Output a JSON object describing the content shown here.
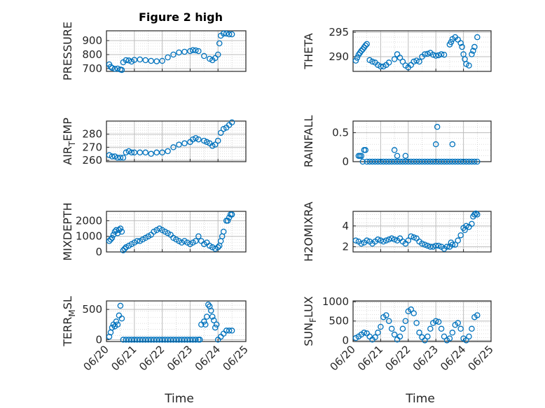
{
  "figure": {
    "title": "Figure 2 high",
    "xlabel": "Time"
  },
  "chart_data": [
    {
      "type": "scatter",
      "ylabel": "PRESSURE",
      "xlim": [
        0,
        5
      ],
      "ylim": [
        680,
        970
      ],
      "yticks": [
        700,
        800,
        900
      ],
      "ytick_labels": [
        "700",
        "800",
        "900"
      ],
      "xticks": [
        0,
        1,
        2,
        3,
        4,
        5
      ],
      "xtick_labels": [],
      "x_tick_pos": "bottom",
      "series": [
        {
          "x": [
            0.1,
            0.15,
            0.2,
            0.3,
            0.4,
            0.5,
            0.55,
            0.6,
            0.7,
            0.8,
            0.9,
            1.0,
            1.2,
            1.4,
            1.6,
            1.8,
            2.0,
            2.2,
            2.4,
            2.6,
            2.8,
            3.0,
            3.1,
            3.2,
            3.3,
            3.5,
            3.7,
            3.8,
            3.9,
            4.0,
            4.05,
            4.1,
            4.2,
            4.3,
            4.4,
            4.5
          ],
          "y": [
            730,
            712,
            705,
            698,
            700,
            693,
            690,
            745,
            760,
            758,
            750,
            762,
            765,
            760,
            755,
            752,
            755,
            780,
            800,
            815,
            820,
            825,
            832,
            830,
            825,
            790,
            770,
            760,
            775,
            800,
            880,
            935,
            950,
            950,
            945,
            945
          ]
        }
      ]
    },
    {
      "type": "scatter",
      "ylabel": "THETA",
      "xlim": [
        0,
        5
      ],
      "ylim": [
        287,
        295.3
      ],
      "yticks": [
        290,
        295
      ],
      "ytick_labels": [
        "290",
        "295"
      ],
      "xticks": [
        0,
        1,
        2,
        3,
        4,
        5
      ],
      "xtick_labels": [],
      "series": [
        {
          "x": [
            0.1,
            0.15,
            0.2,
            0.25,
            0.3,
            0.35,
            0.4,
            0.45,
            0.5,
            0.6,
            0.7,
            0.8,
            0.9,
            1.0,
            1.1,
            1.2,
            1.3,
            1.5,
            1.6,
            1.7,
            1.8,
            1.9,
            2.0,
            2.1,
            2.2,
            2.3,
            2.4,
            2.5,
            2.6,
            2.7,
            2.8,
            2.9,
            3.0,
            3.1,
            3.2,
            3.3,
            3.5,
            3.55,
            3.6,
            3.7,
            3.8,
            3.9,
            3.95,
            4.0,
            4.05,
            4.1,
            4.2,
            4.3,
            4.35,
            4.4,
            4.5
          ],
          "y": [
            289.2,
            289.8,
            290.4,
            290.8,
            291.2,
            291.5,
            291.9,
            292.3,
            292.6,
            289.3,
            289.0,
            288.8,
            288.3,
            288.0,
            288.0,
            288.3,
            288.8,
            289.5,
            290.5,
            289.8,
            289.0,
            288.2,
            287.8,
            288.3,
            289.0,
            289.2,
            289.0,
            290.0,
            290.5,
            290.6,
            290.8,
            290.4,
            290.2,
            290.3,
            290.5,
            290.4,
            292.5,
            293.0,
            293.6,
            294.0,
            293.5,
            292.8,
            292.0,
            290.5,
            289.5,
            288.5,
            288.2,
            290.5,
            291.2,
            292.0,
            294.0
          ]
        }
      ]
    },
    {
      "type": "scatter",
      "ylabel": "AIR_TEMP",
      "ylabel_base": "AIR",
      "ylabel_sub": "T",
      "ylabel_rest": "EMP",
      "xlim": [
        0,
        5
      ],
      "ylim": [
        259,
        290
      ],
      "yticks": [
        260,
        270,
        280
      ],
      "ytick_labels": [
        "260",
        "270",
        "280"
      ],
      "xticks": [
        0,
        1,
        2,
        3,
        4,
        5
      ],
      "xtick_labels": [],
      "series": [
        {
          "x": [
            0.1,
            0.2,
            0.3,
            0.4,
            0.5,
            0.6,
            0.7,
            0.8,
            0.9,
            1.0,
            1.2,
            1.4,
            1.6,
            1.8,
            2.0,
            2.2,
            2.4,
            2.6,
            2.8,
            3.0,
            3.1,
            3.2,
            3.3,
            3.5,
            3.6,
            3.7,
            3.8,
            3.9,
            4.0,
            4.1,
            4.2,
            4.3,
            4.4,
            4.5
          ],
          "y": [
            264,
            263,
            263,
            262,
            262,
            262,
            266,
            267,
            266,
            266,
            266,
            266,
            265,
            266,
            266,
            267,
            270,
            272,
            273,
            274,
            276,
            277,
            276,
            275,
            274,
            273,
            271,
            272,
            275,
            281,
            284,
            285,
            287,
            289
          ]
        }
      ]
    },
    {
      "type": "scatter",
      "ylabel": "RAINFALL",
      "xlim": [
        0,
        5
      ],
      "ylim": [
        0,
        0.7
      ],
      "yticks": [
        0,
        0.5
      ],
      "ytick_labels": [
        "0",
        "0.5"
      ],
      "xticks": [
        0,
        1,
        2,
        3,
        4,
        5
      ],
      "xtick_labels": [],
      "series": [
        {
          "x": [
            0.2,
            0.25,
            0.3,
            0.35,
            0.4,
            0.45,
            0.5,
            0.6,
            0.7,
            0.8,
            0.9,
            1.0,
            1.1,
            1.2,
            1.3,
            1.4,
            1.5,
            1.6,
            1.7,
            1.8,
            1.9,
            2.0,
            2.1,
            2.2,
            2.3,
            2.4,
            2.5,
            2.6,
            2.7,
            2.8,
            2.9,
            3.0,
            3.1,
            3.2,
            3.3,
            3.4,
            3.5,
            3.6,
            3.7,
            3.8,
            3.9,
            4.0,
            4.1,
            4.2,
            4.3,
            4.4,
            4.5,
            1.5,
            1.6,
            1.9,
            3.0,
            3.05,
            3.6
          ],
          "y": [
            0.1,
            0.1,
            0.1,
            0,
            0.2,
            0.2,
            0,
            0,
            0,
            0,
            0,
            0,
            0,
            0,
            0,
            0,
            0,
            0,
            0,
            0,
            0,
            0,
            0,
            0,
            0,
            0,
            0,
            0,
            0,
            0,
            0,
            0,
            0,
            0,
            0,
            0,
            0,
            0,
            0,
            0,
            0,
            0,
            0,
            0,
            0,
            0,
            0,
            0.2,
            0.1,
            0.1,
            0.3,
            0.6,
            0.3
          ]
        }
      ]
    },
    {
      "type": "scatter",
      "ylabel": "MIXDEPTH",
      "xlim": [
        0,
        5
      ],
      "ylim": [
        0,
        2600
      ],
      "yticks": [
        0,
        1000,
        2000
      ],
      "ytick_labels": [
        "0",
        "1000",
        "2000"
      ],
      "xticks": [
        0,
        1,
        2,
        3,
        4,
        5
      ],
      "xtick_labels": [],
      "series": [
        {
          "x": [
            0.1,
            0.15,
            0.2,
            0.25,
            0.3,
            0.35,
            0.4,
            0.45,
            0.5,
            0.55,
            0.6,
            0.65,
            0.7,
            0.8,
            0.9,
            1.0,
            1.1,
            1.2,
            1.3,
            1.4,
            1.5,
            1.6,
            1.7,
            1.8,
            1.9,
            2.0,
            2.1,
            2.2,
            2.3,
            2.4,
            2.5,
            2.6,
            2.7,
            2.8,
            2.9,
            3.0,
            3.1,
            3.2,
            3.3,
            3.4,
            3.5,
            3.6,
            3.7,
            3.8,
            3.9,
            4.0,
            4.05,
            4.1,
            4.15,
            4.2,
            4.3,
            4.35,
            4.4,
            4.45,
            4.5
          ],
          "y": [
            700,
            800,
            900,
            1100,
            1300,
            1400,
            1200,
            1400,
            1500,
            1300,
            100,
            200,
            300,
            400,
            500,
            600,
            700,
            700,
            800,
            900,
            1000,
            1100,
            1300,
            1400,
            1500,
            1400,
            1300,
            1200,
            1100,
            900,
            800,
            700,
            600,
            700,
            600,
            500,
            600,
            700,
            1000,
            700,
            500,
            600,
            400,
            300,
            200,
            300,
            400,
            700,
            1000,
            1300,
            2000,
            2000,
            2200,
            2400,
            2400
          ]
        }
      ]
    },
    {
      "type": "scatter",
      "ylabel": "H2OMIXRA",
      "xlim": [
        0,
        5
      ],
      "ylim": [
        1.5,
        5.4
      ],
      "yticks": [
        2,
        4
      ],
      "ytick_labels": [
        "2",
        "4"
      ],
      "xticks": [
        0,
        1,
        2,
        3,
        4,
        5
      ],
      "xtick_labels": [],
      "series": [
        {
          "x": [
            0.1,
            0.2,
            0.3,
            0.4,
            0.5,
            0.6,
            0.7,
            0.8,
            0.9,
            1.0,
            1.1,
            1.2,
            1.3,
            1.4,
            1.5,
            1.6,
            1.7,
            1.8,
            1.9,
            2.0,
            2.1,
            2.2,
            2.3,
            2.4,
            2.5,
            2.6,
            2.7,
            2.8,
            2.9,
            3.0,
            3.1,
            3.2,
            3.3,
            3.4,
            3.5,
            3.55,
            3.6,
            3.7,
            3.8,
            3.9,
            4.0,
            4.05,
            4.1,
            4.2,
            4.3,
            4.35,
            4.4,
            4.45,
            4.5
          ],
          "y": [
            2.6,
            2.5,
            2.3,
            2.4,
            2.6,
            2.5,
            2.3,
            2.5,
            2.7,
            2.6,
            2.5,
            2.6,
            2.7,
            2.8,
            2.7,
            2.6,
            2.8,
            2.5,
            2.3,
            2.6,
            3.0,
            2.9,
            2.8,
            2.5,
            2.3,
            2.2,
            2.1,
            2.0,
            2.0,
            2.1,
            2.1,
            2.0,
            1.8,
            2.0,
            2.0,
            2.4,
            2.2,
            2.2,
            2.6,
            3.1,
            3.8,
            3.6,
            4.0,
            3.9,
            4.2,
            4.9,
            5.1,
            5.2,
            5.1
          ]
        }
      ]
    },
    {
      "type": "scatter",
      "ylabel": "TERR_MSL",
      "ylabel_base": "TERR",
      "ylabel_sub": "M",
      "ylabel_rest": "SL",
      "xlim": [
        0,
        5
      ],
      "ylim": [
        -30,
        640
      ],
      "yticks": [
        0,
        500
      ],
      "ytick_labels": [
        "0",
        "500"
      ],
      "xticks": [
        0,
        1,
        2,
        3,
        4,
        5
      ],
      "xtick_labels": [
        "06/20",
        "06/21",
        "06/22",
        "06/23",
        "06/24",
        "06/25"
      ],
      "series": [
        {
          "x": [
            0.1,
            0.15,
            0.2,
            0.25,
            0.3,
            0.35,
            0.4,
            0.45,
            0.5,
            0.55,
            0.6,
            0.7,
            0.8,
            0.9,
            1.0,
            1.1,
            1.2,
            1.3,
            1.4,
            1.5,
            1.6,
            1.7,
            1.8,
            1.9,
            2.0,
            2.1,
            2.2,
            2.3,
            2.4,
            2.5,
            2.6,
            2.7,
            2.8,
            2.9,
            3.0,
            3.1,
            3.2,
            3.3,
            3.35,
            3.4,
            3.5,
            3.55,
            3.6,
            3.65,
            3.7,
            3.75,
            3.8,
            3.85,
            3.9,
            3.95,
            4.0,
            4.1,
            4.2,
            4.3,
            4.4,
            4.5
          ],
          "y": [
            50,
            120,
            200,
            250,
            220,
            300,
            250,
            400,
            560,
            350,
            0,
            0,
            0,
            0,
            0,
            0,
            0,
            0,
            0,
            0,
            0,
            0,
            0,
            0,
            0,
            0,
            0,
            0,
            0,
            0,
            0,
            0,
            0,
            0,
            0,
            0,
            0,
            0,
            0,
            250,
            300,
            250,
            380,
            580,
            550,
            480,
            380,
            320,
            200,
            250,
            0,
            50,
            100,
            150,
            150,
            150
          ]
        }
      ]
    },
    {
      "type": "scatter",
      "ylabel": "SUN_FLUX",
      "ylabel_base": "SUN",
      "ylabel_sub": "F",
      "ylabel_rest": "LUX",
      "xlim": [
        0,
        5
      ],
      "ylim": [
        -30,
        1020
      ],
      "yticks": [
        0,
        500,
        1000
      ],
      "ytick_labels": [
        "0",
        "500",
        "1000"
      ],
      "xticks": [
        0,
        1,
        2,
        3,
        4,
        5
      ],
      "xtick_labels": [
        "06/20",
        "06/21",
        "06/22",
        "06/23",
        "06/24",
        "06/25"
      ],
      "series": [
        {
          "x": [
            0.1,
            0.2,
            0.3,
            0.4,
            0.5,
            0.6,
            0.7,
            0.8,
            0.9,
            1.0,
            1.1,
            1.2,
            1.3,
            1.4,
            1.5,
            1.6,
            1.7,
            1.8,
            1.9,
            2.0,
            2.1,
            2.2,
            2.3,
            2.4,
            2.5,
            2.6,
            2.7,
            2.8,
            2.9,
            3.0,
            3.1,
            3.2,
            3.3,
            3.4,
            3.5,
            3.6,
            3.7,
            3.8,
            3.9,
            4.0,
            4.1,
            4.2,
            4.3,
            4.4,
            4.5
          ],
          "y": [
            60,
            100,
            150,
            200,
            180,
            100,
            20,
            80,
            200,
            350,
            600,
            650,
            500,
            300,
            150,
            20,
            100,
            300,
            500,
            750,
            800,
            700,
            450,
            200,
            80,
            0,
            100,
            300,
            450,
            500,
            480,
            300,
            100,
            0,
            50,
            200,
            400,
            450,
            300,
            50,
            0,
            100,
            300,
            600,
            650
          ]
        }
      ]
    }
  ]
}
